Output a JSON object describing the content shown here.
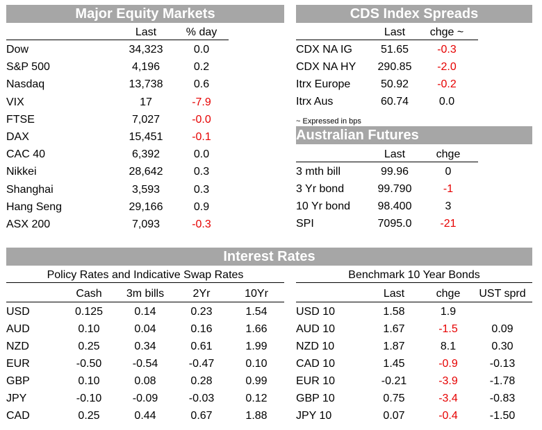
{
  "equity": {
    "title": "Major Equity Markets",
    "col_last": "Last",
    "col_pct": "% day",
    "rows": [
      {
        "name": "Dow",
        "last": "34,323",
        "pct": "0.0"
      },
      {
        "name": "S&P 500",
        "last": "4,196",
        "pct": "0.2"
      },
      {
        "name": "Nasdaq",
        "last": "13,738",
        "pct": "0.6"
      },
      {
        "name": "VIX",
        "last": "17",
        "pct": "-7.9"
      },
      {
        "name": "FTSE",
        "last": "7,027",
        "pct": "-0.0"
      },
      {
        "name": "DAX",
        "last": "15,451",
        "pct": "-0.1"
      },
      {
        "name": "CAC 40",
        "last": "6,392",
        "pct": "0.0"
      },
      {
        "name": "Nikkei",
        "last": "28,642",
        "pct": "0.3"
      },
      {
        "name": "Shanghai",
        "last": "3,593",
        "pct": "0.3"
      },
      {
        "name": "Hang Seng",
        "last": "29,166",
        "pct": "0.9"
      },
      {
        "name": "ASX 200",
        "last": "7,093",
        "pct": "-0.3"
      }
    ]
  },
  "cds": {
    "title": "CDS Index Spreads",
    "col_last": "Last",
    "col_chg": "chge ~",
    "note": "~ Expressed in bps",
    "rows": [
      {
        "name": "CDX NA IG",
        "last": "51.65",
        "chg": "-0.3"
      },
      {
        "name": "CDX NA HY",
        "last": "290.85",
        "chg": "-2.0"
      },
      {
        "name": "Itrx Europe",
        "last": "50.92",
        "chg": "-0.2"
      },
      {
        "name": "Itrx Aus",
        "last": "60.74",
        "chg": "0.0"
      }
    ]
  },
  "futures": {
    "title": "Australian Futures",
    "col_last": "Last",
    "col_chg": "chge",
    "rows": [
      {
        "name": "3 mth bill",
        "last": "99.96",
        "chg": "0"
      },
      {
        "name": "3 Yr bond",
        "last": "99.790",
        "chg": "-1"
      },
      {
        "name": "10 Yr bond",
        "last": "98.400",
        "chg": "3"
      },
      {
        "name": "SPI",
        "last": "7095.0",
        "chg": "-21"
      }
    ]
  },
  "rates": {
    "title": "Interest Rates",
    "policy_title": "Policy Rates and Indicative Swap Rates",
    "policy_cols": [
      "Cash",
      "3m bills",
      "2Yr",
      "10Yr"
    ],
    "policy_rows": [
      {
        "ccy": "USD",
        "v": [
          "0.125",
          "0.14",
          "0.23",
          "1.54"
        ]
      },
      {
        "ccy": "AUD",
        "v": [
          "0.10",
          "0.04",
          "0.16",
          "1.66"
        ]
      },
      {
        "ccy": "NZD",
        "v": [
          "0.25",
          "0.34",
          "0.61",
          "1.99"
        ]
      },
      {
        "ccy": "EUR",
        "v": [
          "-0.50",
          "-0.54",
          "-0.47",
          "0.10"
        ]
      },
      {
        "ccy": "GBP",
        "v": [
          "0.10",
          "0.08",
          "0.28",
          "0.99"
        ]
      },
      {
        "ccy": "JPY",
        "v": [
          "-0.10",
          "-0.09",
          "-0.03",
          "0.12"
        ]
      },
      {
        "ccy": "CAD",
        "v": [
          "0.25",
          "0.44",
          "0.67",
          "1.88"
        ]
      }
    ],
    "bench_title": "Benchmark 10 Year Bonds",
    "bench_cols": [
      "Last",
      "chge",
      "UST sprd"
    ],
    "bench_rows": [
      {
        "name": "USD 10",
        "last": "1.58",
        "chg": "1.9",
        "sprd": ""
      },
      {
        "name": "AUD 10",
        "last": "1.67",
        "chg": "-1.5",
        "sprd": "0.09"
      },
      {
        "name": "NZD 10",
        "last": "1.87",
        "chg": "8.1",
        "sprd": "0.30"
      },
      {
        "name": "CAD 10",
        "last": "1.45",
        "chg": "-0.9",
        "sprd": "-0.13"
      },
      {
        "name": "EUR 10",
        "last": "-0.21",
        "chg": "-3.9",
        "sprd": "-1.78"
      },
      {
        "name": "GBP 10",
        "last": "0.75",
        "chg": "-3.4",
        "sprd": "-0.83"
      },
      {
        "name": "JPY 10",
        "last": "0.07",
        "chg": "-0.4",
        "sprd": "-1.50"
      }
    ]
  },
  "colors": {
    "header_bg": "#a6a6a6",
    "header_text": "#ffffff",
    "negative": "#e60000"
  }
}
